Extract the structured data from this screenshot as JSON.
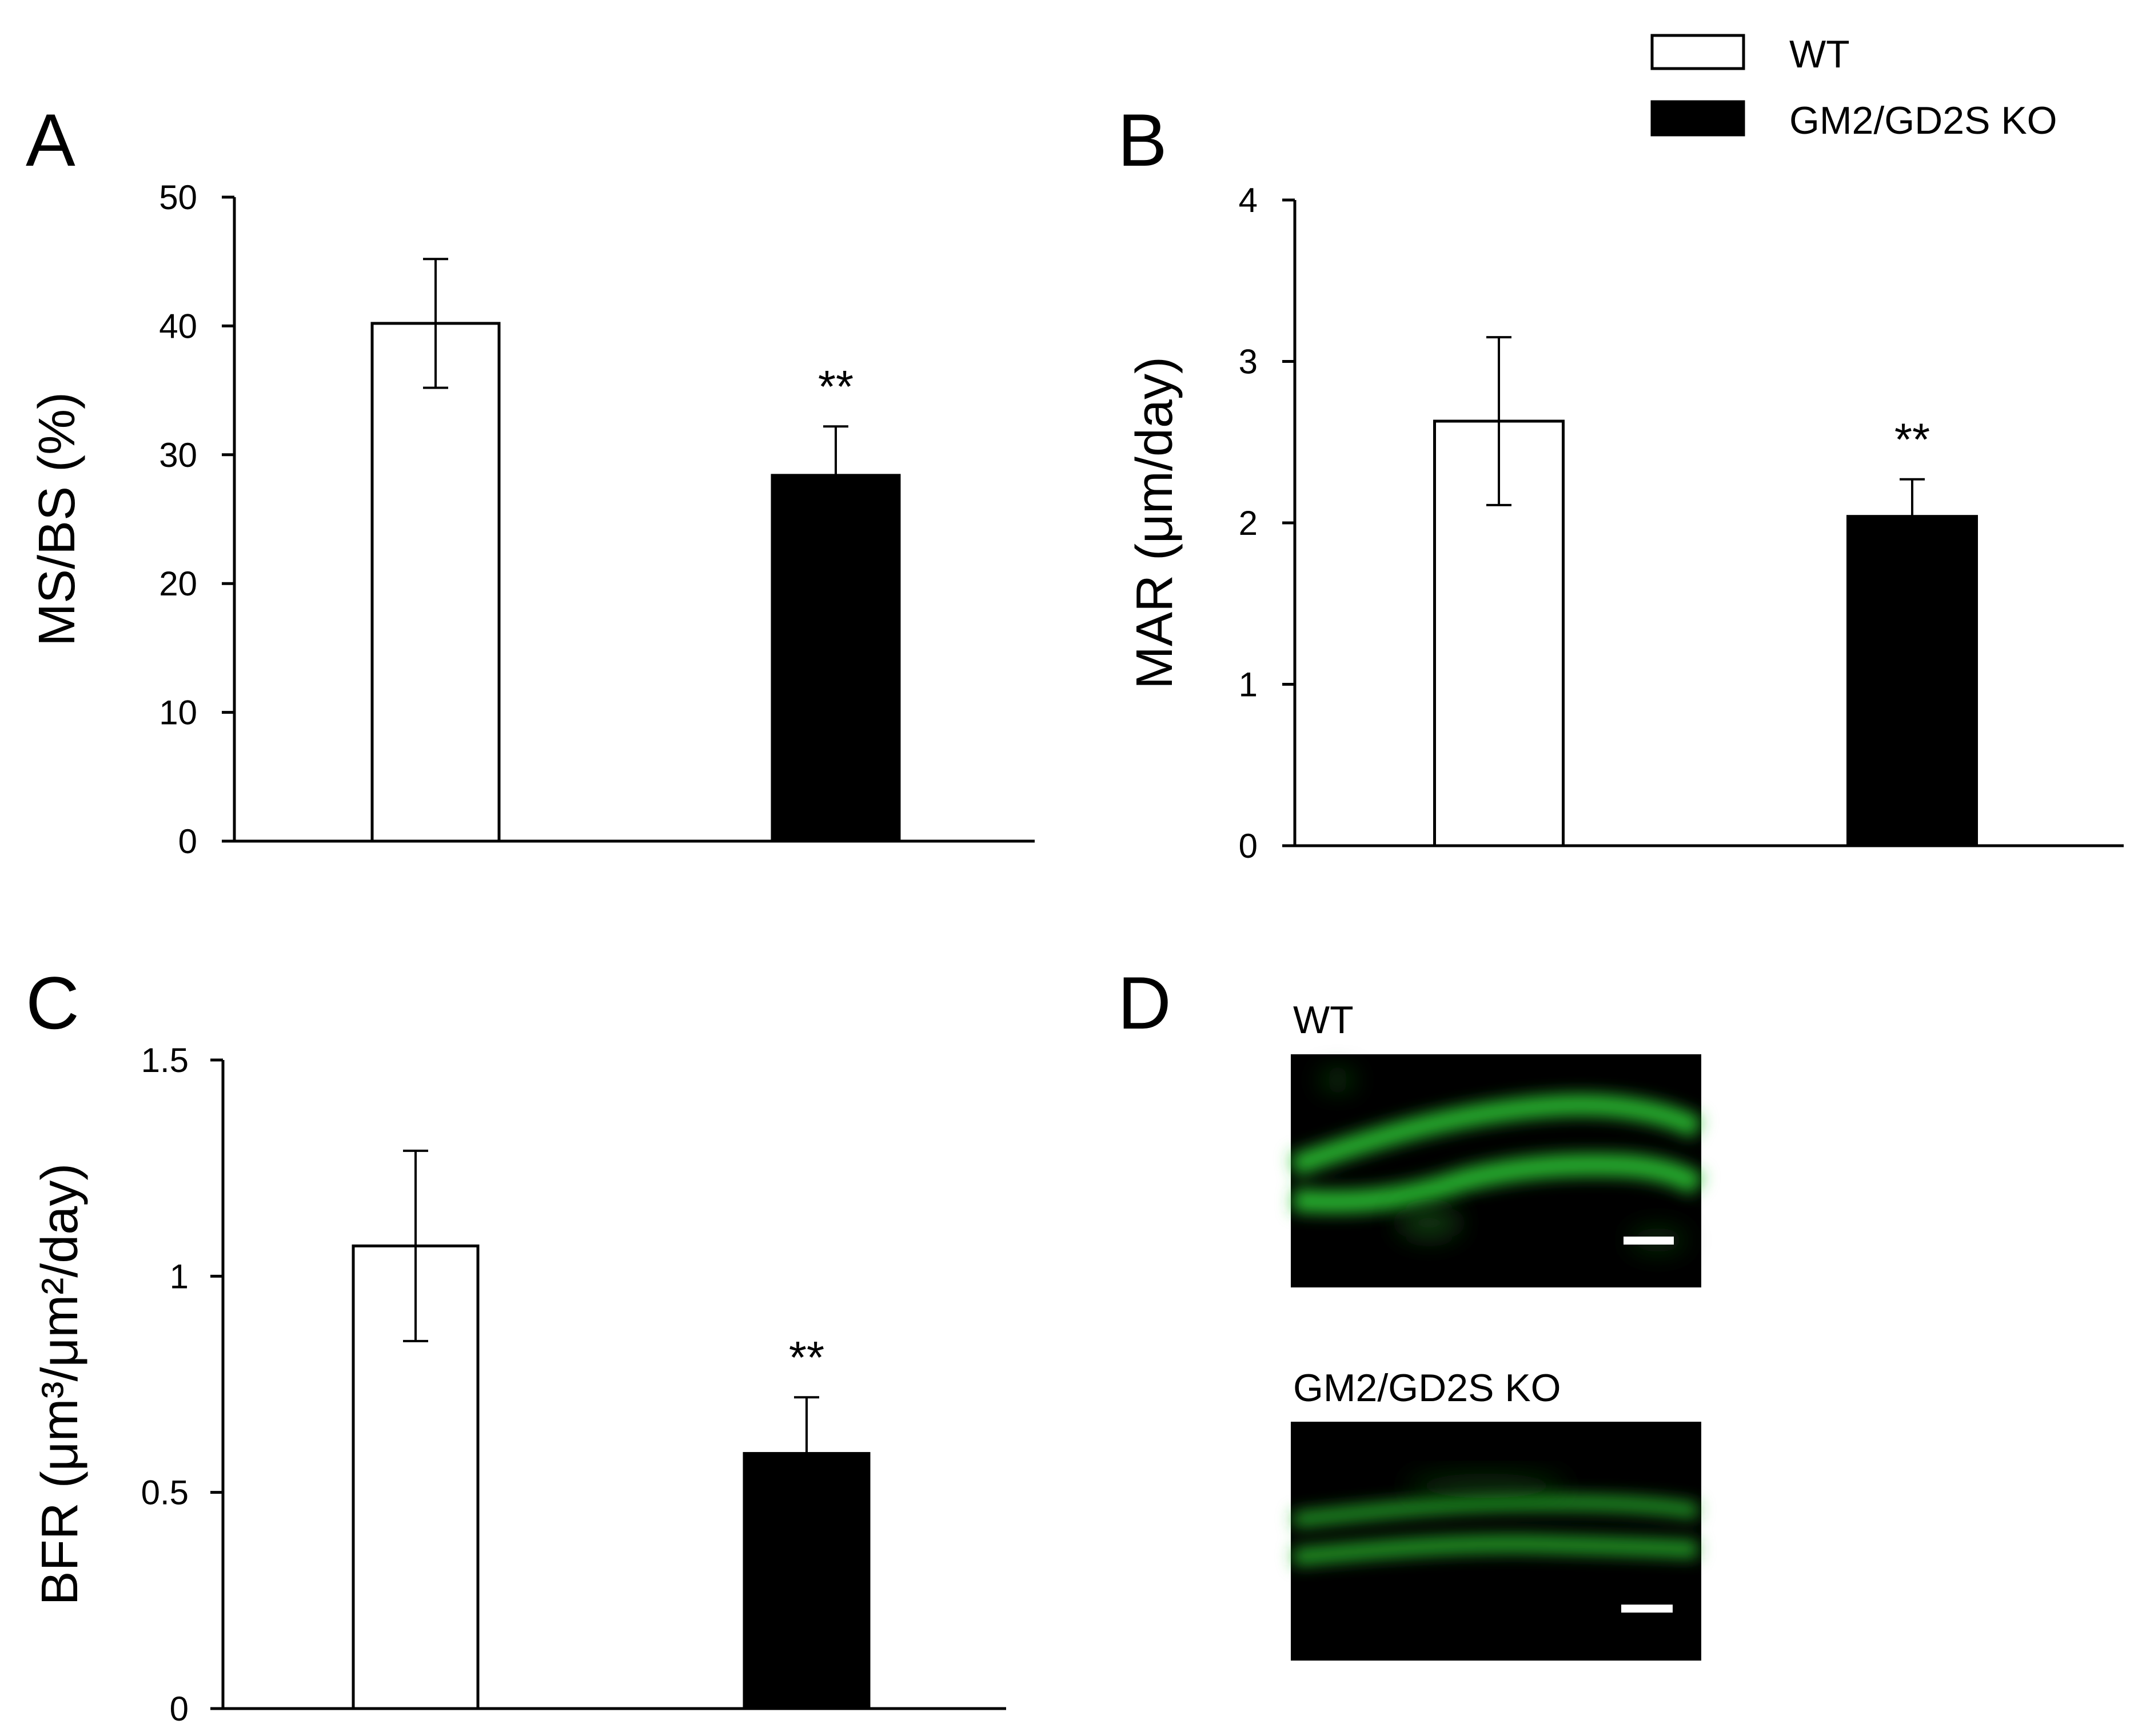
{
  "legend": {
    "items": [
      {
        "label": "WT",
        "fill": "#ffffff"
      },
      {
        "label": "GM2/GD2S KO",
        "fill": "#000000"
      }
    ]
  },
  "panels": {
    "A": {
      "letter": "A"
    },
    "B": {
      "letter": "B"
    },
    "C": {
      "letter": "C"
    },
    "D": {
      "letter": "D",
      "images": [
        {
          "label": "WT",
          "glow_color": "#27c22a"
        },
        {
          "label": "GM2/GD2S KO",
          "glow_color": "#27c22a"
        }
      ]
    }
  },
  "colors": {
    "wt": "#ffffff",
    "ko": "#000000",
    "axis": "#000000",
    "image_bg": "#000000",
    "scale_bar": "#ffffff"
  },
  "chart_data": [
    {
      "type": "bar",
      "panel": "A",
      "ylabel": "MS/BS (%)",
      "ylim": [
        0,
        50
      ],
      "yticks": [
        "0",
        "10",
        "20",
        "30",
        "40",
        "50"
      ],
      "series": [
        {
          "name": "WT",
          "value": 40.2,
          "error": 5.0,
          "annotation": ""
        },
        {
          "name": "GM2/GD2S KO",
          "value": 28.4,
          "error": 3.8,
          "annotation": "**"
        }
      ]
    },
    {
      "type": "bar",
      "panel": "B",
      "ylabel": "MAR (μm/day)",
      "ylim": [
        0,
        4
      ],
      "yticks": [
        "0",
        "1",
        "2",
        "3",
        "4"
      ],
      "series": [
        {
          "name": "WT",
          "value": 2.63,
          "error": 0.52,
          "annotation": ""
        },
        {
          "name": "GM2/GD2S KO",
          "value": 2.04,
          "error": 0.23,
          "annotation": "**"
        }
      ]
    },
    {
      "type": "bar",
      "panel": "C",
      "ylabel": "BFR (μm³/μm²/day)",
      "ylim": [
        0,
        1.5
      ],
      "yticks": [
        "0",
        "0.5",
        "1",
        "1.5"
      ],
      "series": [
        {
          "name": "WT",
          "value": 1.07,
          "error": 0.22,
          "annotation": ""
        },
        {
          "name": "GM2/GD2S KO",
          "value": 0.59,
          "error": 0.13,
          "annotation": "**"
        }
      ]
    }
  ]
}
